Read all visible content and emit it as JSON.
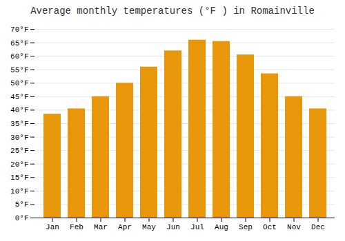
{
  "chart_data": {
    "type": "bar",
    "title": "Average monthly temperatures (°F ) in Romainville",
    "categories": [
      "Jan",
      "Feb",
      "Mar",
      "Apr",
      "May",
      "Jun",
      "Jul",
      "Aug",
      "Sep",
      "Oct",
      "Nov",
      "Dec"
    ],
    "values": [
      38.5,
      40.5,
      45.0,
      50.0,
      56.0,
      62.0,
      66.0,
      65.5,
      60.5,
      53.5,
      45.0,
      40.5
    ],
    "color": "#E8960A",
    "ylim": [
      0,
      70
    ],
    "yticks": [
      {
        "value": 0,
        "label": "0°F"
      },
      {
        "value": 5,
        "label": "5°F"
      },
      {
        "value": 10,
        "label": "10°F"
      },
      {
        "value": 15,
        "label": "15°F"
      },
      {
        "value": 20,
        "label": "20°F"
      },
      {
        "value": 25,
        "label": "25°F"
      },
      {
        "value": 30,
        "label": "30°F"
      },
      {
        "value": 35,
        "label": "35°F"
      },
      {
        "value": 40,
        "label": "40°F"
      },
      {
        "value": 45,
        "label": "45°F"
      },
      {
        "value": 50,
        "label": "50°F"
      },
      {
        "value": 55,
        "label": "55°F"
      },
      {
        "value": 60,
        "label": "60°F"
      },
      {
        "value": 65,
        "label": "65°F"
      },
      {
        "value": 70,
        "label": "70°F"
      }
    ],
    "grid": true
  }
}
